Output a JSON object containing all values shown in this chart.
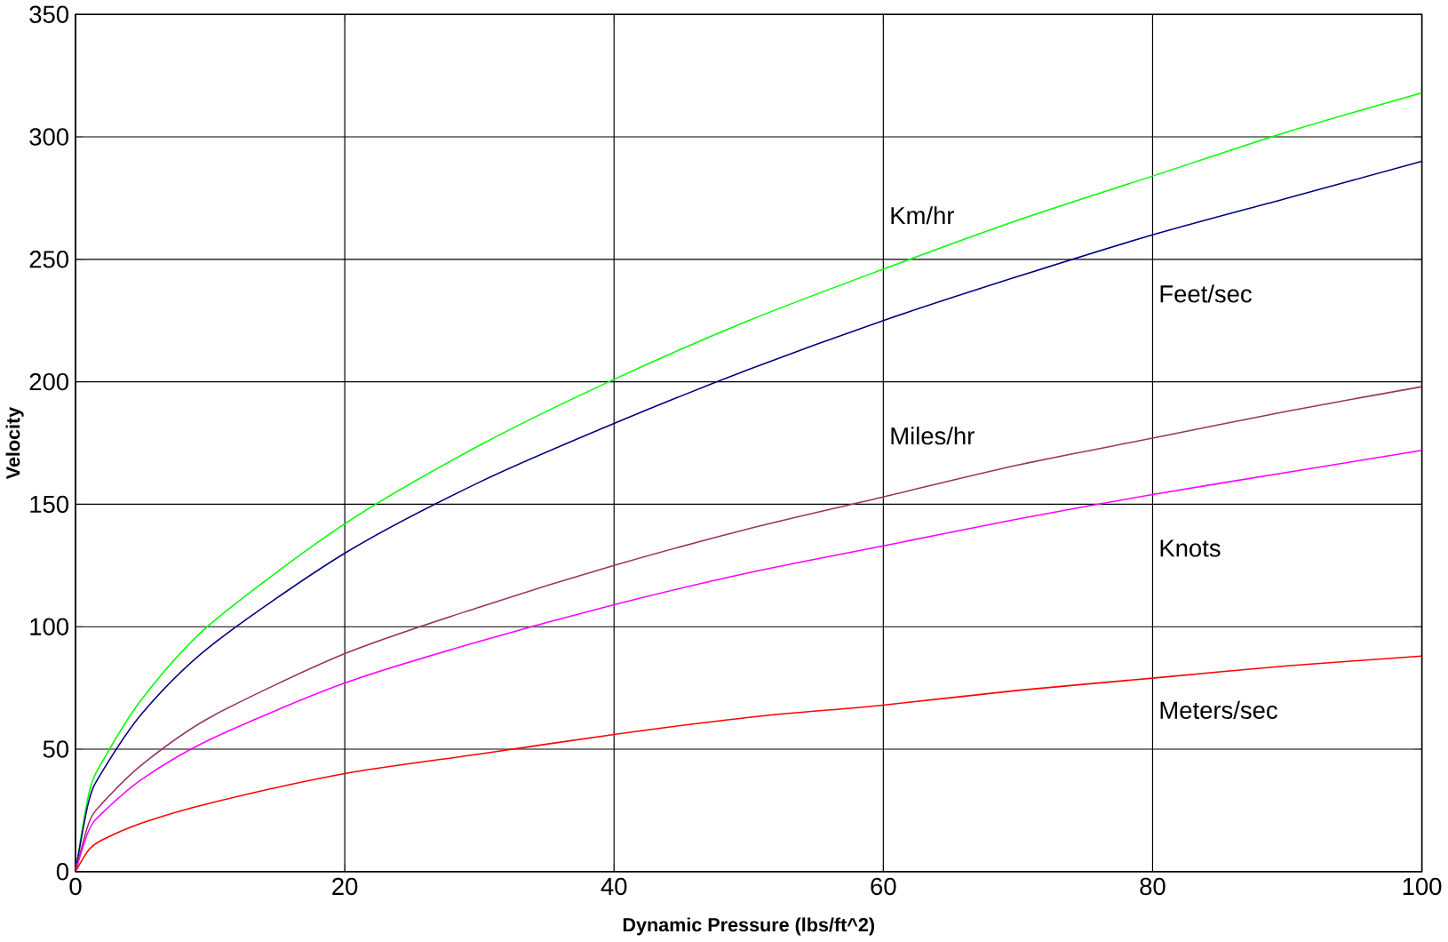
{
  "chart_data": {
    "type": "line",
    "xlabel": "Dynamic Pressure (lbs/ft^2)",
    "ylabel": "Velocity",
    "x": [
      0,
      1,
      2,
      5,
      10,
      20,
      30,
      40,
      50,
      60,
      70,
      80,
      90,
      100
    ],
    "series": [
      {
        "name": "Km/hr",
        "color": "#00ff00",
        "values": [
          0,
          32,
          45,
          71,
          101,
          142,
          174,
          201,
          225,
          246,
          266,
          284,
          302,
          318
        ]
      },
      {
        "name": "Feet/sec",
        "color": "#000080",
        "values": [
          0,
          29,
          41,
          65,
          92,
          130,
          159,
          183,
          205,
          225,
          243,
          260,
          275,
          290
        ]
      },
      {
        "name": "Miles/hr",
        "color": "#993366",
        "values": [
          0,
          20,
          28,
          44,
          63,
          89,
          108,
          125,
          140,
          153,
          166,
          177,
          188,
          198
        ]
      },
      {
        "name": "Knots",
        "color": "#ff00ff",
        "values": [
          0,
          17,
          24,
          38,
          54,
          77,
          94,
          109,
          122,
          133,
          144,
          154,
          163,
          172
        ]
      },
      {
        "name": "Meters/sec",
        "color": "#ff0000",
        "values": [
          0,
          9,
          13,
          20,
          28,
          40,
          48,
          56,
          63,
          68,
          74,
          79,
          84,
          88
        ]
      }
    ],
    "xlim": [
      0,
      100
    ],
    "ylim": [
      0,
      350
    ],
    "xticks": [
      0,
      20,
      40,
      60,
      80,
      100
    ],
    "yticks": [
      0,
      50,
      100,
      150,
      200,
      250,
      300,
      350
    ],
    "grid": true,
    "marker": "none",
    "line_style": "solid"
  }
}
